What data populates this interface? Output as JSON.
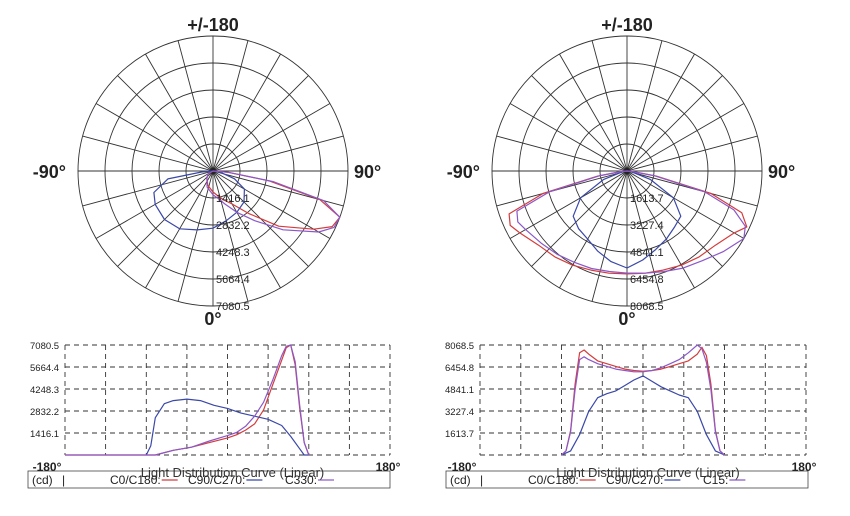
{
  "chart_data": [
    {
      "type": "line",
      "subtype": "polar",
      "top_label": "+/-180",
      "left_label": "-90°",
      "right_label": "90°",
      "bottom_label": "0°",
      "ring_values": [
        "1416.1",
        "2832.2",
        "4248.3",
        "5664.4",
        "7080.5"
      ],
      "rmax": 7080.5,
      "colors": {
        "c0": "#d43c3c",
        "c90": "#3a48a8",
        "c3": "#8b58c8"
      },
      "series": [
        {
          "key": "c0",
          "angles": [
            -180,
            -100,
            -80,
            -60,
            -40,
            -20,
            0,
            10,
            20,
            30,
            40,
            50,
            60,
            65,
            70,
            75,
            80,
            85,
            90
          ],
          "values": [
            0,
            0,
            0,
            300,
            500,
            800,
            1100,
            1300,
            1600,
            2000,
            2900,
            4500,
            6100,
            6900,
            7080,
            5800,
            3000,
            800,
            0
          ]
        },
        {
          "key": "c90",
          "angles": [
            -90,
            -85,
            -80,
            -70,
            -60,
            -45,
            -30,
            -15,
            0,
            15,
            30,
            45,
            60,
            70,
            80,
            85,
            90
          ],
          "values": [
            0,
            600,
            2400,
            3300,
            3500,
            3600,
            3500,
            3200,
            3000,
            2700,
            2500,
            2300,
            1900,
            1200,
            400,
            0,
            0
          ]
        },
        {
          "key": "c3",
          "angles": [
            -180,
            -100,
            -80,
            -60,
            -40,
            -20,
            0,
            10,
            20,
            30,
            40,
            50,
            60,
            65,
            70,
            75,
            80,
            85,
            90
          ],
          "values": [
            0,
            0,
            0,
            300,
            500,
            900,
            1250,
            1450,
            1850,
            2500,
            3400,
            4800,
            6400,
            7000,
            7080,
            6000,
            3200,
            800,
            0
          ]
        }
      ],
      "linear": {
        "ylabels": [
          "1416.1",
          "2832.2",
          "4248.3",
          "5664.4",
          "7080.5"
        ],
        "ymax": 7080.5,
        "xmin_label": "-180°",
        "xmax_label": "180°",
        "title": "Light Distribution Curve (Linear)",
        "legend": {
          "cd": "(cd)",
          "bar": "|",
          "c0": "C0/C180:",
          "c90": "C90/C270:",
          "c3": "C330:"
        }
      }
    },
    {
      "type": "line",
      "subtype": "polar",
      "top_label": "+/-180",
      "left_label": "-90°",
      "right_label": "90°",
      "bottom_label": "0°",
      "ring_values": [
        "1613.7",
        "3227.4",
        "4841.1",
        "6454.8",
        "8068.5"
      ],
      "rmax": 8068.5,
      "colors": {
        "c0": "#d43c3c",
        "c90": "#3a48a8",
        "c3": "#8b58c8"
      },
      "series": [
        {
          "key": "c0",
          "angles": [
            -90,
            -85,
            -80,
            -75,
            -70,
            -65,
            -60,
            -50,
            -40,
            -30,
            -20,
            -10,
            0,
            10,
            20,
            30,
            40,
            50,
            60,
            65,
            70,
            75,
            80,
            85,
            90
          ],
          "values": [
            0,
            300,
            1800,
            5200,
            7500,
            7700,
            7400,
            6900,
            6700,
            6500,
            6300,
            6200,
            6150,
            6200,
            6300,
            6500,
            6700,
            6900,
            7400,
            7900,
            7300,
            5200,
            1800,
            300,
            0
          ]
        },
        {
          "key": "c90",
          "angles": [
            -90,
            -80,
            -70,
            -60,
            -50,
            -40,
            -30,
            -20,
            -10,
            0,
            10,
            20,
            30,
            40,
            50,
            60,
            70,
            80,
            90
          ],
          "values": [
            0,
            300,
            1500,
            3200,
            4200,
            4500,
            4700,
            5100,
            5500,
            5800,
            5400,
            5000,
            4700,
            4400,
            4200,
            3200,
            1500,
            300,
            0
          ]
        },
        {
          "key": "c3",
          "angles": [
            -90,
            -85,
            -80,
            -75,
            -70,
            -65,
            -60,
            -50,
            -40,
            -30,
            -20,
            -10,
            0,
            10,
            20,
            30,
            40,
            50,
            60,
            65,
            70,
            75,
            80,
            85,
            90
          ],
          "values": [
            0,
            300,
            1700,
            4800,
            7000,
            7200,
            7000,
            6700,
            6500,
            6300,
            6200,
            6100,
            6100,
            6200,
            6400,
            6700,
            7000,
            7500,
            8068.5,
            7800,
            6800,
            4800,
            1700,
            300,
            0
          ]
        }
      ],
      "linear": {
        "ylabels": [
          "1613.7",
          "3227.4",
          "4841.1",
          "6454.8",
          "8068.5"
        ],
        "ymax": 8068.5,
        "xmin_label": "-180°",
        "xmax_label": "180°",
        "title": "Light Distribution Curve (Linear)",
        "legend": {
          "cd": "(cd)",
          "bar": "|",
          "c0": "C0/C180:",
          "c90": "C90/C270:",
          "c3": "C15:"
        }
      }
    }
  ]
}
